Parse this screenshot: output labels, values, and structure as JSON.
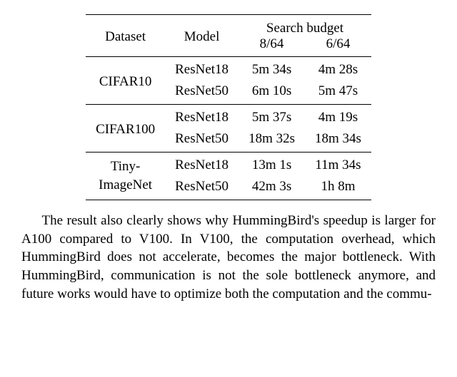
{
  "table": {
    "headers": {
      "dataset": "Dataset",
      "model": "Model",
      "budget": "Search budget",
      "b1": "8/64",
      "b2": "6/64"
    },
    "groups": [
      {
        "dataset": "CIFAR10",
        "rows": [
          {
            "model": "ResNet18",
            "b1": "5m 34s",
            "b2": "4m 28s"
          },
          {
            "model": "ResNet50",
            "b1": "6m 10s",
            "b2": "5m 47s"
          }
        ]
      },
      {
        "dataset": "CIFAR100",
        "rows": [
          {
            "model": "ResNet18",
            "b1": "5m 37s",
            "b2": "4m 19s"
          },
          {
            "model": "ResNet50",
            "b1": "18m 32s",
            "b2": "18m 34s"
          }
        ]
      },
      {
        "dataset_l1": "Tiny-",
        "dataset_l2": "ImageNet",
        "rows": [
          {
            "model": "ResNet18",
            "b1": "13m 1s",
            "b2": "11m 34s"
          },
          {
            "model": "ResNet50",
            "b1": "42m 3s",
            "b2": "1h 8m"
          }
        ]
      }
    ]
  },
  "paragraph": "The result also clearly shows why HummingBird's speedup is larger for A100 compared to V100. In V100, the computation overhead, which HummingBird does not accelerate, becomes the major bottleneck. With HummingBird, communication is not the sole bottleneck anymore, and future works would have to optimize both the computation and the commu-"
}
